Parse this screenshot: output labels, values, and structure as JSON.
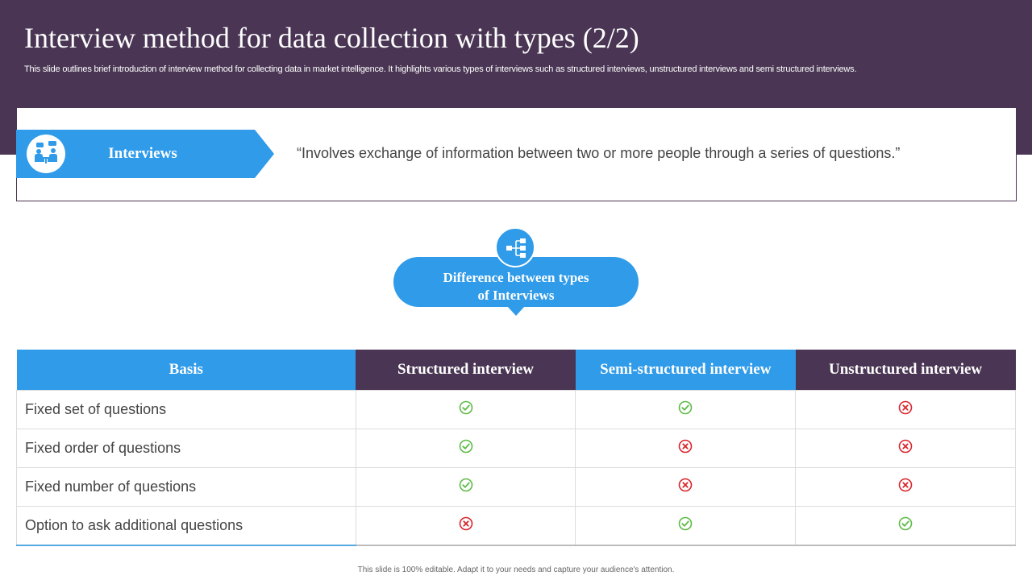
{
  "header": {
    "title": "Interview method for data collection with types (2/2)",
    "subtitle": "This slide outlines brief introduction of interview method for collecting data in market intelligence. It highlights various types of interviews such as structured interviews, unstructured interviews and semi structured interviews."
  },
  "definition": {
    "label": "Interviews",
    "icon": "interview-people-icon",
    "quote": "“Involves exchange of information between two or more people through a  series of questions.”"
  },
  "bubble": {
    "line1": "Difference between types",
    "line2": "of Interviews",
    "icon": "hierarchy-icon"
  },
  "table": {
    "headers": [
      "Basis",
      "Structured  interview",
      "Semi-structured  interview",
      "Unstructured  interview"
    ],
    "rows": [
      {
        "basis": "Fixed set of questions",
        "values": [
          true,
          true,
          false
        ]
      },
      {
        "basis": "Fixed order of questions",
        "values": [
          true,
          false,
          false
        ]
      },
      {
        "basis": "Fixed number of questions",
        "values": [
          true,
          false,
          false
        ]
      },
      {
        "basis": "Option to ask additional questions",
        "values": [
          false,
          true,
          true
        ]
      }
    ]
  },
  "colors": {
    "purple": "#4a3654",
    "blue": "#2f9be9",
    "check": "#5dbb46",
    "cross": "#d9242b"
  },
  "footer": "This slide is 100% editable. Adapt it to your needs and capture your audience's attention."
}
